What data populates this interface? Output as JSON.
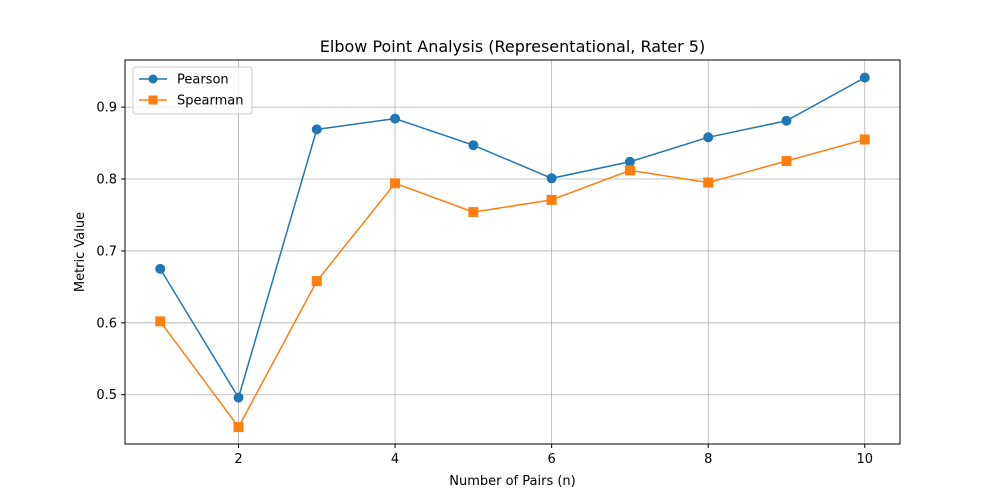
{
  "chart_data": {
    "type": "line",
    "title": "Elbow Point Analysis (Representational, Rater 5)",
    "xlabel": "Number of Pairs (n)",
    "ylabel": "Metric Value",
    "x": [
      1,
      2,
      3,
      4,
      5,
      6,
      7,
      8,
      9,
      10
    ],
    "xlim": [
      0.55,
      10.45
    ],
    "ylim": [
      0.4315,
      0.9655
    ],
    "xticks": [
      2,
      4,
      6,
      8,
      10
    ],
    "xtick_labels": [
      "2",
      "4",
      "6",
      "8",
      "10"
    ],
    "yticks": [
      0.5,
      0.6,
      0.7,
      0.8,
      0.9
    ],
    "ytick_labels": [
      "0.5",
      "0.6",
      "0.7",
      "0.8",
      "0.9"
    ],
    "grid": true,
    "legend_position": "top-left",
    "series": [
      {
        "name": "Pearson",
        "color": "#1f77b4",
        "marker": "circle",
        "values": [
          0.675,
          0.496,
          0.869,
          0.884,
          0.847,
          0.801,
          0.824,
          0.858,
          0.881,
          0.941
        ]
      },
      {
        "name": "Spearman",
        "color": "#ff7f0e",
        "marker": "square",
        "values": [
          0.602,
          0.455,
          0.658,
          0.794,
          0.754,
          0.771,
          0.812,
          0.795,
          0.825,
          0.855
        ]
      }
    ]
  }
}
